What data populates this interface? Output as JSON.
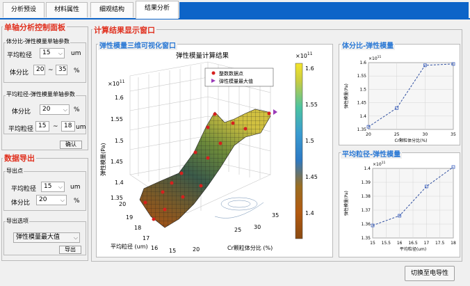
{
  "tabs": [
    "分析预设",
    "材料属性",
    "细观结构",
    "结果分析"
  ],
  "left": {
    "control_title": "单轴分析控制面板",
    "vf_group": {
      "title": "体分比-弹性模量单轴参数",
      "size_label": "平均粒径",
      "size_value": "15",
      "size_unit": "um",
      "vf_label": "体分比",
      "vf_min": "20",
      "tilde": "~",
      "vf_max": "35",
      "vf_unit": "%"
    },
    "size_group": {
      "title": "平均粒径-弹性模量单轴参数",
      "vf_label": "体分比",
      "vf_value": "20",
      "vf_unit": "%",
      "size_label": "平均粒径",
      "size_min": "15",
      "tilde": "~",
      "size_max": "18",
      "size_unit": "um",
      "confirm": "确认"
    },
    "export_title": "数据导出",
    "export_point": {
      "title": "导出点",
      "size_label": "平均粒径",
      "size_value": "15",
      "size_unit": "um",
      "vf_label": "体分比",
      "vf_value": "20",
      "vf_unit": "%"
    },
    "export_options": {
      "title": "导出选项",
      "select_value": "弹性模量最大值",
      "export_button": "导出"
    }
  },
  "results_title": "计算结果显示窗口",
  "plot3d": {
    "panel_title": "弹性模量三维可视化窗口",
    "title": "弹性模量计算结果",
    "z_exp": "×10",
    "exp_sup": "11",
    "zlabel": "弹性模量(Pa)",
    "xlabel": "Cr颗粒体分比 (%)",
    "ylabel": "平均粒径 (um)",
    "legend": [
      "整数数据点",
      "弹性模量最大值"
    ],
    "colorbar_ticks": [
      "1.6",
      "1.55",
      "1.5",
      "1.45",
      "1.4"
    ]
  },
  "chart_data": [
    {
      "type": "line",
      "panel_title": "体分比-弹性模量",
      "x": [
        20,
        25,
        30,
        35
      ],
      "values": [
        1.36,
        1.43,
        1.59,
        1.595
      ],
      "y_exp": "×10",
      "exp_sup": "11",
      "xlabel": "Cr颗粒体分比(%)",
      "ylabel": "弹性模量(Pa)",
      "ylim": [
        1.35,
        1.6
      ],
      "xticks": [
        "20",
        "25",
        "30",
        "35"
      ],
      "yticks": [
        "1.6",
        "1.55",
        "1.5",
        "1.45",
        "1.4",
        "1.35"
      ],
      "grid": true
    },
    {
      "type": "line",
      "panel_title": "平均粒径-弹性模量",
      "x": [
        15,
        16,
        17,
        18
      ],
      "values": [
        1.359,
        1.366,
        1.387,
        1.401
      ],
      "y_exp": "×10",
      "exp_sup": "11",
      "xlabel": "平均粒径(um)",
      "ylabel": "弹性模量(Pa)",
      "ylim": [
        1.35,
        1.4
      ],
      "xticks": [
        "15",
        "15.5",
        "16",
        "16.5",
        "17",
        "17.5",
        "18"
      ],
      "yticks": [
        "1.4",
        "1.39",
        "1.38",
        "1.37",
        "1.36",
        "1.35"
      ],
      "grid": true
    }
  ],
  "switch_button": "切换至电导性"
}
